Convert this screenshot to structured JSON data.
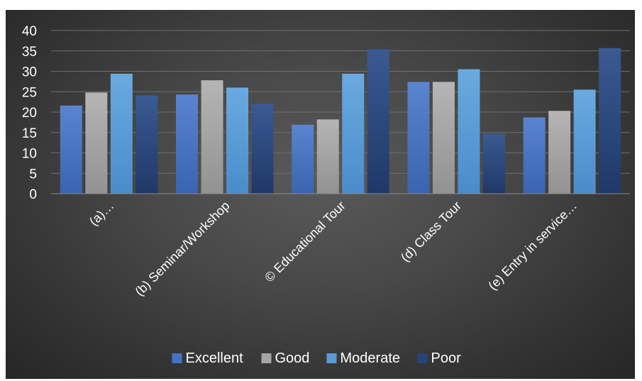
{
  "chart_data": {
    "type": "bar",
    "categories": [
      "(a)…",
      "(b) Seminar/Workshop",
      "© Educational Tour",
      "(d) Class Tour",
      "(e) Entry in service…"
    ],
    "series": [
      {
        "name": "Excellent",
        "values": [
          21.6,
          24.3,
          16.9,
          27.4,
          18.7
        ],
        "color": "#4472c4"
      },
      {
        "name": "Good",
        "values": [
          24.8,
          27.8,
          18.2,
          27.4,
          20.3
        ],
        "color": "#a5a5a5"
      },
      {
        "name": "Moderate",
        "values": [
          29.4,
          26.0,
          29.4,
          30.5,
          25.5
        ],
        "color": "#5b9bd5"
      },
      {
        "name": "Poor",
        "values": [
          24.1,
          22.0,
          35.4,
          14.7,
          35.7
        ],
        "color": "#264478"
      }
    ],
    "yticks": [
      "0",
      "5",
      "10",
      "15",
      "20",
      "25",
      "30",
      "35",
      "40"
    ],
    "ylim": [
      0,
      40
    ],
    "grid": true,
    "legend_position": "bottom",
    "title": "",
    "xlabel": "",
    "ylabel": ""
  }
}
